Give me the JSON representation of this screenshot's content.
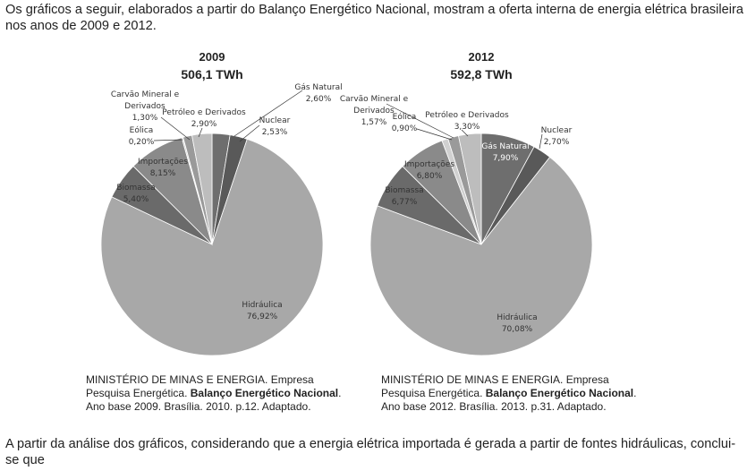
{
  "intro_text": "Os gráficos a seguir, elaborados a partir do Balanço Energético Nacional, mostram a oferta interna de energia elétrica brasileira nos anos de 2009 e 2012.",
  "conclusion_text": "A partir da análise dos gráficos, considerando que a energia elétrica importada é gerada a partir de fontes hidráulicas, conclui-se que",
  "sources": [
    {
      "prefix": "MINISTÉRIO DE MINAS E ENERGIA. Empresa Pesquisa Energética. ",
      "bold": "Balanço Energético Nacional",
      "suffix": ". Ano base 2009. Brasília. 2010. p.12. Adaptado."
    },
    {
      "prefix": "MINISTÉRIO DE MINAS E ENERGIA. Empresa Pesquisa Energética. ",
      "bold": "Balanço Energético Nacional",
      "suffix": ". Ano base 2012. Brasília. 2013. p.31. Adaptado."
    }
  ],
  "colors": {
    "hidraulica": "#a8a8a8",
    "gas": "#6e6e6e",
    "nuclear": "#595959",
    "petroleo": "#bdbdbd",
    "carvao": "#9a9a9a",
    "eolica": "#d0d0d0",
    "importacoes": "#8a8a8a",
    "biomassa": "#6a6a6a",
    "edge": "#ffffff"
  },
  "chart_data": [
    {
      "type": "pie",
      "title": "2009",
      "subtitle": "506,1 TWh",
      "slices": [
        {
          "key": "gas",
          "label": "Gás Natural",
          "value": 2.6,
          "display": "2,60%"
        },
        {
          "key": "nuclear",
          "label": "Nuclear",
          "value": 2.53,
          "display": "2,53%"
        },
        {
          "key": "hidraulica",
          "label": "Hidráulica",
          "value": 76.92,
          "display": "76,92%"
        },
        {
          "key": "biomassa",
          "label": "Biomassa",
          "value": 5.4,
          "display": "5,40%"
        },
        {
          "key": "importacoes",
          "label": "Importações",
          "value": 8.15,
          "display": "8,15%"
        },
        {
          "key": "eolica",
          "label": "Eólica",
          "value": 0.2,
          "display": "0,20%"
        },
        {
          "key": "carvao",
          "label": "Carvão Mineral e Derivados",
          "value": 1.3,
          "display": "1,30%"
        },
        {
          "key": "petroleo",
          "label": "Petróleo e Derivados",
          "value": 2.9,
          "display": "2,90%"
        }
      ]
    },
    {
      "type": "pie",
      "title": "2012",
      "subtitle": "592,8 TWh",
      "slices": [
        {
          "key": "gas",
          "label": "Gás Natural",
          "value": 7.9,
          "display": "7,90%"
        },
        {
          "key": "nuclear",
          "label": "Nuclear",
          "value": 2.7,
          "display": "2,70%"
        },
        {
          "key": "hidraulica",
          "label": "Hidráulica",
          "value": 70.08,
          "display": "70,08%"
        },
        {
          "key": "biomassa",
          "label": "Biomassa",
          "value": 6.77,
          "display": "6,77%"
        },
        {
          "key": "importacoes",
          "label": "Importações",
          "value": 6.8,
          "display": "6,80%"
        },
        {
          "key": "eolica",
          "label": "Eólica",
          "value": 0.9,
          "display": "0,90%"
        },
        {
          "key": "carvao",
          "label": "Carvão Mineral e Derivados",
          "value": 1.57,
          "display": "1,57%"
        },
        {
          "key": "petroleo",
          "label": "Petróleo e Derivados",
          "value": 3.3,
          "display": "3,30%"
        }
      ]
    }
  ]
}
